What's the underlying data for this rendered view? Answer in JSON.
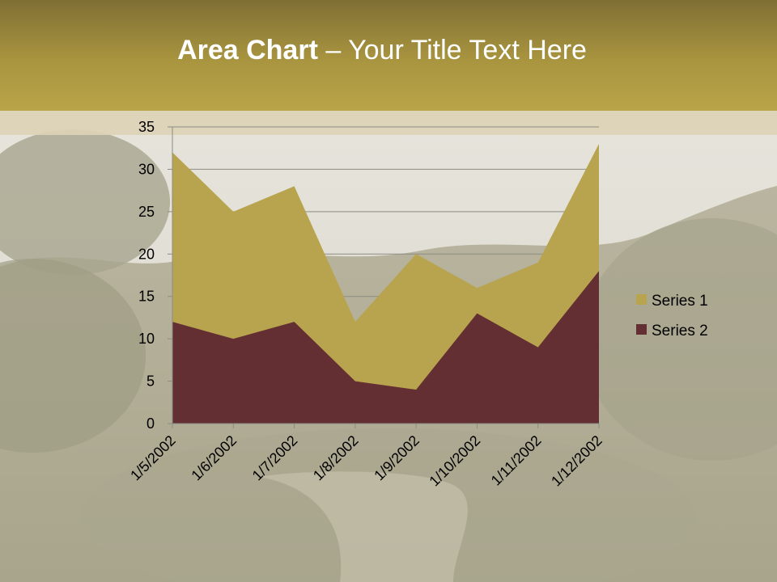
{
  "slide": {
    "title_bold": "Area Chart",
    "title_rest": " – Your Title Text Here"
  },
  "colors": {
    "series1": "#b8a44e",
    "series2": "#632f32",
    "title_bar": "#a9953f"
  },
  "chart_data": {
    "type": "area",
    "categories": [
      "1/5/2002",
      "1/6/2002",
      "1/7/2002",
      "1/8/2002",
      "1/9/2002",
      "1/10/2002",
      "1/11/2002",
      "1/12/2002"
    ],
    "series": [
      {
        "name": "Series 1",
        "values": [
          32,
          25,
          28,
          12,
          20,
          16,
          19,
          33
        ]
      },
      {
        "name": "Series 2",
        "values": [
          12,
          10,
          12,
          5,
          4,
          13,
          9,
          18
        ]
      }
    ],
    "ylim": [
      0,
      35
    ],
    "yticks": [
      "0",
      "5",
      "10",
      "15",
      "20",
      "25",
      "30",
      "35"
    ],
    "grid": true,
    "legend": "right"
  }
}
